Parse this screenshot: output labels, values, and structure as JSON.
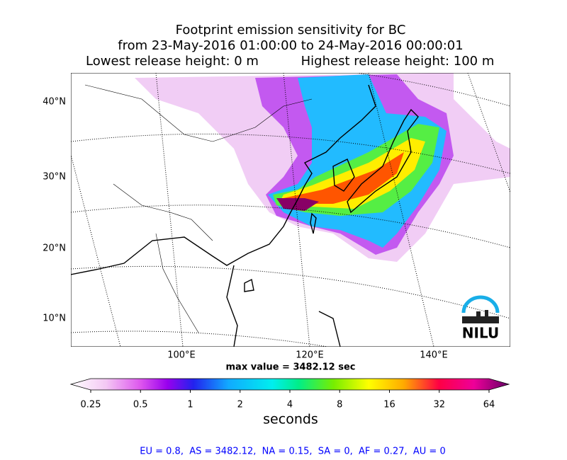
{
  "title": {
    "lines": [
      "Footprint emission sensitivity for BC",
      "from 23-May-2016 01:00:00 to 24-May-2016 00:00:01"
    ],
    "lowest": "Lowest release height: 0 m",
    "highest": "Highest release height: 100 m"
  },
  "map": {
    "lat_labels": [
      "40°N",
      "30°N",
      "20°N",
      "10°N"
    ],
    "lon_labels": [
      "100°E",
      "120°E",
      "140°E"
    ],
    "max_value": "max value = 3482.12 sec",
    "logo": "NILU"
  },
  "colorbar": {
    "ticks": [
      0.25,
      0.5,
      1,
      2,
      4,
      8,
      16,
      32,
      64
    ],
    "scale": "log",
    "label": "seconds"
  },
  "footer": "EU = 0.8,  AS = 3482.12,  NA = 0.15,  SA = 0,  AF = 0.27,  AU = 0"
}
